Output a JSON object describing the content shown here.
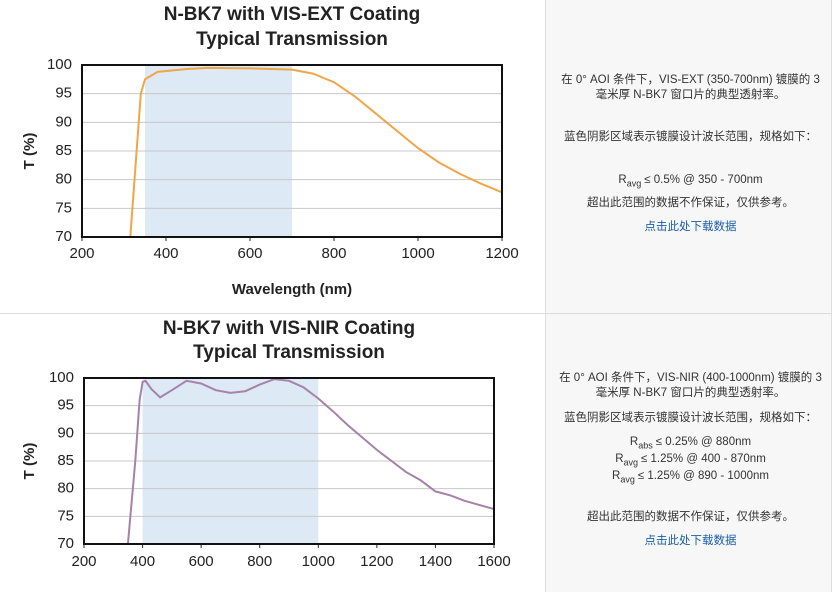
{
  "chart_data": [
    {
      "type": "line",
      "title": [
        "N-BK7 with VIS-EXT Coating",
        "Typical Transmission"
      ],
      "x_label": "Wavelength (nm)",
      "y_label": "T (%)",
      "x": [
        315,
        330,
        340,
        350,
        380,
        450,
        500,
        600,
        700,
        750,
        800,
        850,
        900,
        950,
        1000,
        1050,
        1100,
        1150,
        1200
      ],
      "values": [
        70,
        85,
        95,
        97.5,
        98.8,
        99.3,
        99.5,
        99.4,
        99.2,
        98.5,
        97,
        94.5,
        91.5,
        88.5,
        85.5,
        83,
        81,
        79.3,
        77.8
      ],
      "color": "#f0a646",
      "shaded_range": [
        350,
        700
      ],
      "shade_color": "#dde9f5",
      "xlim": [
        200,
        1200
      ],
      "xticks": [
        200,
        400,
        600,
        800,
        1000,
        1200
      ],
      "ylim": [
        70,
        100
      ],
      "yticks": [
        70,
        75,
        80,
        85,
        90,
        95,
        100
      ],
      "grid": true
    },
    {
      "type": "line",
      "title": [
        "N-BK7 with VIS-NIR Coating",
        "Typical Transmission"
      ],
      "x_label": "Wavelength (nm)",
      "y_label": "T (%)",
      "x": [
        350,
        375,
        390,
        400,
        410,
        430,
        460,
        500,
        550,
        600,
        650,
        700,
        750,
        800,
        850,
        900,
        950,
        1000,
        1050,
        1100,
        1200,
        1300,
        1350,
        1400,
        1450,
        1500,
        1600
      ],
      "values": [
        70,
        85,
        96,
        99.3,
        99.5,
        98,
        96.5,
        97.8,
        99.5,
        99,
        97.8,
        97.3,
        97.6,
        98.8,
        99.8,
        99.5,
        98.3,
        96.3,
        94,
        91.5,
        87,
        83,
        81.5,
        79.5,
        78.8,
        77.8,
        76.3
      ],
      "color": "#a583a8",
      "shaded_range": [
        400,
        1000
      ],
      "shade_color": "#dde9f5",
      "xlim": [
        200,
        1600
      ],
      "xticks": [
        200,
        400,
        600,
        800,
        1000,
        1200,
        1400,
        1600
      ],
      "ylim": [
        70,
        100
      ],
      "yticks": [
        70,
        75,
        80,
        85,
        90,
        95,
        100
      ],
      "grid": true
    }
  ],
  "panels": [
    {
      "description": "在 0° AOI 条件下，VIS-EXT (350-700nm) 镀膜的 3 毫米厚 N-BK7 窗口片的典型透射率。",
      "shading_note": "蓝色阴影区域表示镀膜设计波长范围，规格如下：",
      "specs": [
        {
          "symbol": "R",
          "subscript": "avg",
          "text": "≤ 0.5% @ 350 - 700nm"
        }
      ],
      "disclaimer": "超出此范围的数据不作保证，仅供参考。",
      "link": "点击此处下载数据"
    },
    {
      "description": "在 0° AOI 条件下，VIS-NIR (400-1000nm) 镀膜的 3 毫米厚 N-BK7 窗口片的典型透射率。",
      "shading_note": "蓝色阴影区域表示镀膜设计波长范围，规格如下：",
      "specs": [
        {
          "symbol": "R",
          "subscript": "abs",
          "text": "≤ 0.25% @ 880nm"
        },
        {
          "symbol": "R",
          "subscript": "avg",
          "text": "≤ 1.25% @ 400 - 870nm"
        },
        {
          "symbol": "R",
          "subscript": "avg",
          "text": "≤ 1.25% @ 890 - 1000nm"
        }
      ],
      "disclaimer": "超出此范围的数据不作保证，仅供参考。",
      "link": "点击此处下载数据"
    }
  ]
}
